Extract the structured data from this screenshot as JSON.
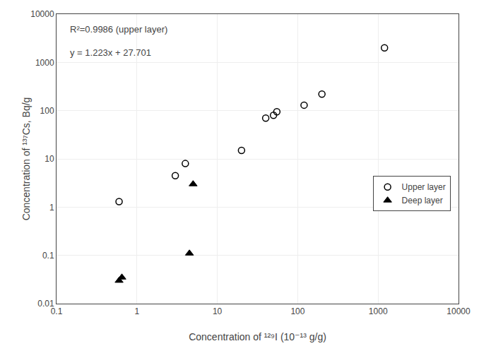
{
  "chart_data": {
    "type": "scatter",
    "xlabel": "Concentration of ¹²⁹I (10⁻¹³ g/g)",
    "ylabel": "Concentration of ¹³⁷Cs, Bq/g",
    "annotations": [
      {
        "text": "R²=0.9986 (upper layer)"
      },
      {
        "text": "y = 1.223x + 27.701"
      }
    ],
    "series": [
      {
        "name": "Upper layer",
        "color": "#000000",
        "marker": "circle-open",
        "x": [
          0.6,
          3.0,
          4.0,
          20,
          40,
          50,
          55,
          120,
          200,
          1200
        ],
        "values": [
          1.3,
          4.5,
          8.0,
          15,
          70,
          80,
          95,
          130,
          220,
          2000
        ]
      },
      {
        "name": "Deep layer",
        "color": "#000000",
        "marker": "triangle-up",
        "x": [
          0.6,
          0.65,
          4.5,
          5.0
        ],
        "values": [
          0.03,
          0.035,
          0.11,
          3.0
        ]
      }
    ],
    "log": true,
    "xlim": [
      0.1,
      10000
    ],
    "ylim": [
      0.01,
      10000
    ],
    "xticks": [
      0.1,
      1,
      10,
      100,
      1000,
      10000
    ],
    "yticks": [
      0.01,
      0.1,
      1,
      10,
      100,
      1000,
      10000
    ],
    "grid": true,
    "legend": "right"
  }
}
